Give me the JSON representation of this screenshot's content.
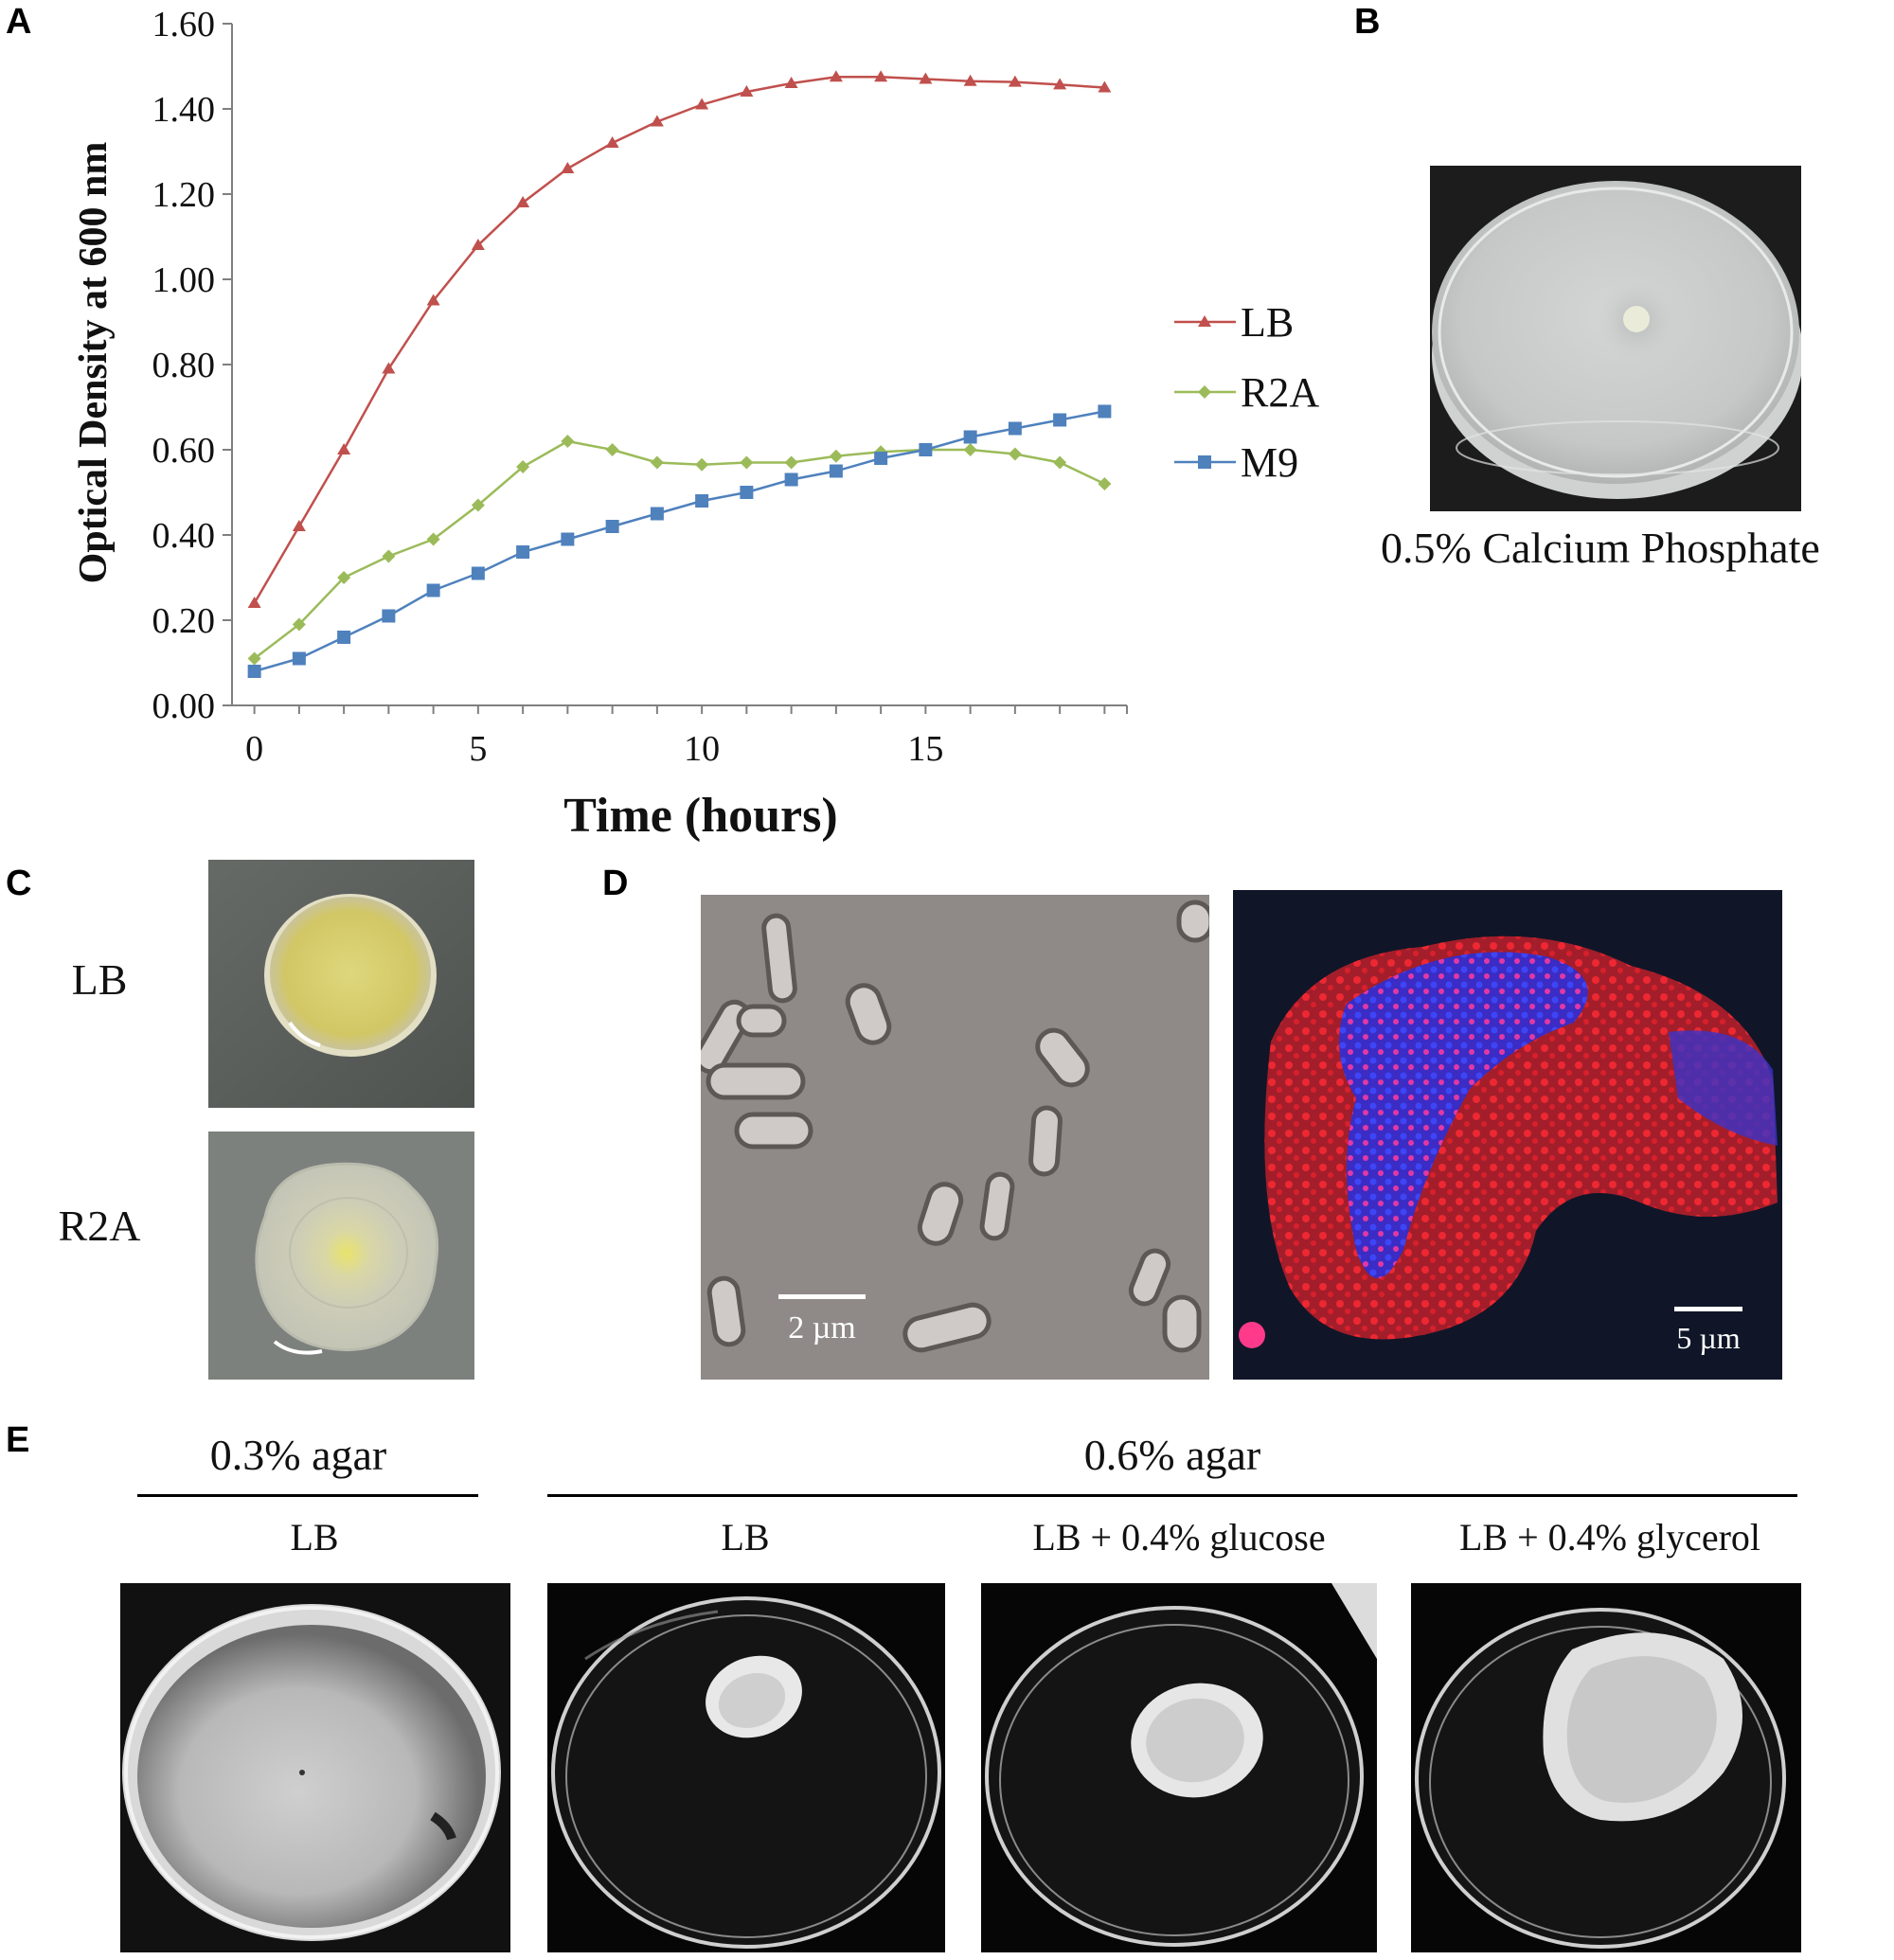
{
  "panels": {
    "A": {
      "letter": "A"
    },
    "B": {
      "letter": "B",
      "caption": "0.5% Calcium Phosphate"
    },
    "C": {
      "letter": "C",
      "rows": [
        {
          "label": "LB"
        },
        {
          "label": "R2A"
        }
      ]
    },
    "D": {
      "letter": "D",
      "scale_left": "2 µm",
      "scale_right": "5 µm"
    },
    "E": {
      "letter": "E",
      "group_left": "0.3% agar",
      "group_right": "0.6% agar",
      "plates": [
        {
          "label": "LB"
        },
        {
          "label": "LB"
        },
        {
          "label": "LB + 0.4% glucose"
        },
        {
          "label": "LB + 0.4% glycerol"
        }
      ]
    }
  },
  "chart_data": {
    "type": "line",
    "xlabel": "Time (hours)",
    "ylabel": "Optical Density at 600 nm",
    "xlim": [
      -0.5,
      19.5
    ],
    "ylim": [
      0,
      1.6
    ],
    "x_ticks": [
      "0",
      "5",
      "10",
      "15"
    ],
    "x_tick_values": [
      0,
      5,
      10,
      15
    ],
    "y_ticks": [
      "0.00",
      "0.20",
      "0.40",
      "0.60",
      "0.80",
      "1.00",
      "1.20",
      "1.40",
      "1.60"
    ],
    "y_tick_values": [
      0,
      0.2,
      0.4,
      0.6,
      0.8,
      1.0,
      1.2,
      1.4,
      1.6
    ],
    "x": [
      0,
      1,
      2,
      3,
      4,
      5,
      6,
      7,
      8,
      9,
      10,
      11,
      12,
      13,
      14,
      15,
      16,
      17,
      18,
      19
    ],
    "legend_position": "right",
    "series": [
      {
        "name": "LB",
        "color": "#c0504d",
        "marker": "triangle",
        "values": [
          0.24,
          0.42,
          0.6,
          0.79,
          0.95,
          1.08,
          1.18,
          1.26,
          1.32,
          1.37,
          1.41,
          1.44,
          1.46,
          1.475,
          1.475,
          1.47,
          1.465,
          1.463,
          1.457,
          1.45
        ]
      },
      {
        "name": "R2A",
        "color": "#9bbb59",
        "marker": "diamond",
        "values": [
          0.11,
          0.19,
          0.3,
          0.35,
          0.39,
          0.47,
          0.56,
          0.62,
          0.6,
          0.57,
          0.565,
          0.57,
          0.57,
          0.585,
          0.595,
          0.6,
          0.6,
          0.59,
          0.57,
          0.52
        ]
      },
      {
        "name": "M9",
        "color": "#4f81bd",
        "marker": "square",
        "values": [
          0.08,
          0.11,
          0.16,
          0.21,
          0.27,
          0.31,
          0.36,
          0.39,
          0.42,
          0.45,
          0.48,
          0.5,
          0.53,
          0.55,
          0.58,
          0.6,
          0.63,
          0.65,
          0.67,
          0.69
        ]
      }
    ]
  }
}
